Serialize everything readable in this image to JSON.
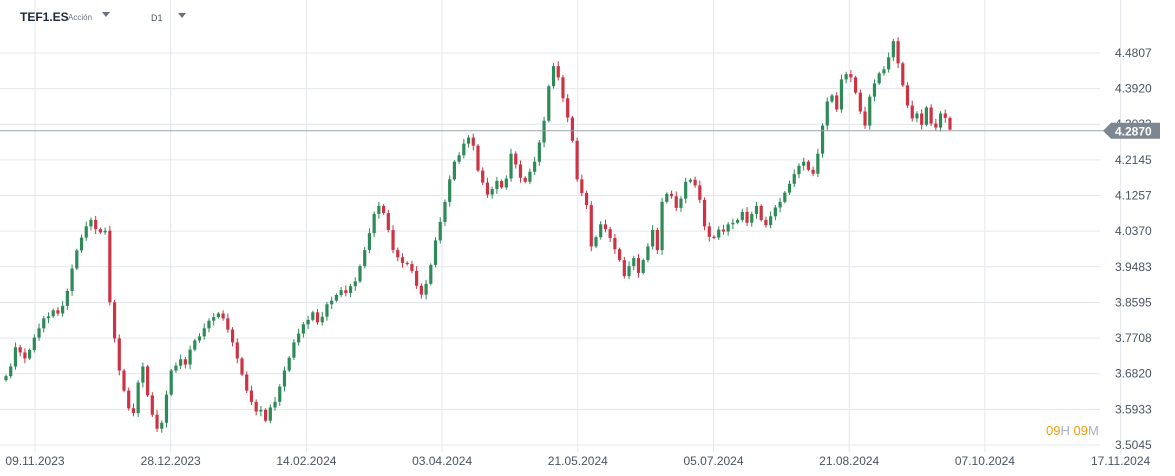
{
  "header": {
    "symbol": "TEF1.ES",
    "instrument_type": "Acción",
    "timeframe": "D1"
  },
  "countdown": {
    "hours": "09",
    "hours_unit": "H",
    "minutes": "09",
    "minutes_unit": "M"
  },
  "colors": {
    "up": "#2e8b57",
    "down": "#cc3344",
    "grid": "#e3e7ec",
    "axis_text": "#4a5462",
    "price_line": "#9aa3ad",
    "price_tag_bg": "#7d8791"
  },
  "chart_data": {
    "type": "candlestick",
    "current_price": "4.2870",
    "y_ticks": [
      "4.4807",
      "4.3920",
      "4.3033",
      "4.2145",
      "4.1257",
      "4.0370",
      "3.9483",
      "3.8595",
      "3.7708",
      "3.6820",
      "3.5933",
      "3.5045"
    ],
    "ylim": [
      3.5045,
      4.535
    ],
    "x_ticks": [
      "09.11.2023",
      "28.12.2023",
      "14.02.2024",
      "03.04.2024",
      "21.05.2024",
      "05.07.2024",
      "21.08.2024",
      "07.10.2024",
      "17.11.2024"
    ],
    "grid": true,
    "close_series": [
      3.676,
      3.7,
      3.748,
      3.735,
      3.72,
      3.741,
      3.772,
      3.795,
      3.82,
      3.825,
      3.84,
      3.832,
      3.851,
      3.888,
      3.944,
      3.989,
      4.021,
      4.049,
      4.065,
      4.042,
      4.034,
      4.038,
      3.86,
      3.77,
      3.69,
      3.64,
      3.596,
      3.584,
      3.66,
      3.7,
      3.628,
      3.58,
      3.545,
      3.56,
      3.63,
      3.69,
      3.702,
      3.718,
      3.705,
      3.742,
      3.765,
      3.775,
      3.795,
      3.814,
      3.823,
      3.832,
      3.82,
      3.792,
      3.76,
      3.72,
      3.68,
      3.64,
      3.612,
      3.588,
      3.592,
      3.565,
      3.598,
      3.612,
      3.65,
      3.69,
      3.722,
      3.76,
      3.782,
      3.805,
      3.816,
      3.835,
      3.81,
      3.824,
      3.855,
      3.864,
      3.878,
      3.89,
      3.883,
      3.9,
      3.912,
      3.95,
      3.99,
      4.032,
      4.08,
      4.1,
      4.082,
      4.04,
      3.99,
      3.972,
      3.958,
      3.955,
      3.938,
      3.901,
      3.879,
      3.906,
      3.953,
      4.014,
      4.06,
      4.11,
      4.166,
      4.21,
      4.226,
      4.255,
      4.27,
      4.25,
      4.188,
      4.158,
      4.128,
      4.142,
      4.162,
      4.146,
      4.168,
      4.23,
      4.203,
      4.17,
      4.16,
      4.185,
      4.21,
      4.258,
      4.312,
      4.398,
      4.448,
      4.42,
      4.368,
      4.32,
      4.262,
      4.166,
      4.132,
      4.102,
      3.999,
      4.022,
      4.054,
      4.042,
      4.02,
      3.992,
      3.965,
      3.925,
      3.95,
      3.97,
      3.933,
      3.965,
      3.999,
      4.04,
      3.99,
      4.11,
      4.13,
      4.124,
      4.095,
      4.118,
      4.16,
      4.165,
      4.151,
      4.115,
      4.049,
      4.023,
      4.021,
      4.041,
      4.036,
      4.054,
      4.058,
      4.065,
      4.085,
      4.058,
      4.08,
      4.1,
      4.065,
      4.052,
      4.074,
      4.096,
      4.11,
      4.133,
      4.155,
      4.179,
      4.2,
      4.21,
      4.19,
      4.18,
      4.23,
      4.3,
      4.36,
      4.375,
      4.34,
      4.415,
      4.428,
      4.42,
      4.382,
      4.335,
      4.3,
      4.372,
      4.405,
      4.43,
      4.44,
      4.47,
      4.51,
      4.455,
      4.4,
      4.35,
      4.318,
      4.33,
      4.302,
      4.345,
      4.305,
      4.295,
      4.33,
      4.319,
      4.29
    ]
  }
}
